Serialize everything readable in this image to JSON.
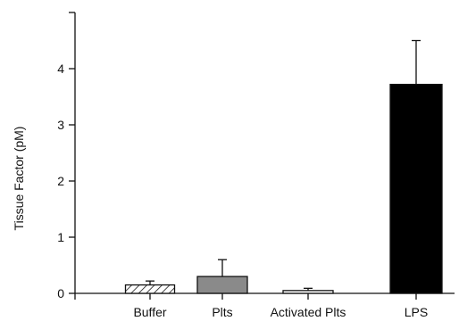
{
  "chart_data": {
    "type": "bar",
    "ylabel": "Tissue Factor (pM)",
    "xlabel": "",
    "ylim": [
      0,
      5
    ],
    "yticks": [
      "0",
      "1",
      "2",
      "3",
      "4"
    ],
    "categories": [
      "Buffer",
      "Plts",
      "Activated Plts",
      "LPS"
    ],
    "values": [
      0.15,
      0.3,
      0.05,
      3.72
    ],
    "errors": [
      0.07,
      0.3,
      0.04,
      0.78
    ],
    "fills": [
      "hatched",
      "gray",
      "white",
      "black"
    ],
    "colors": {
      "axis": "#111111",
      "gray": "#8a8a8a",
      "black": "#000000",
      "white": "#ffffff"
    }
  }
}
